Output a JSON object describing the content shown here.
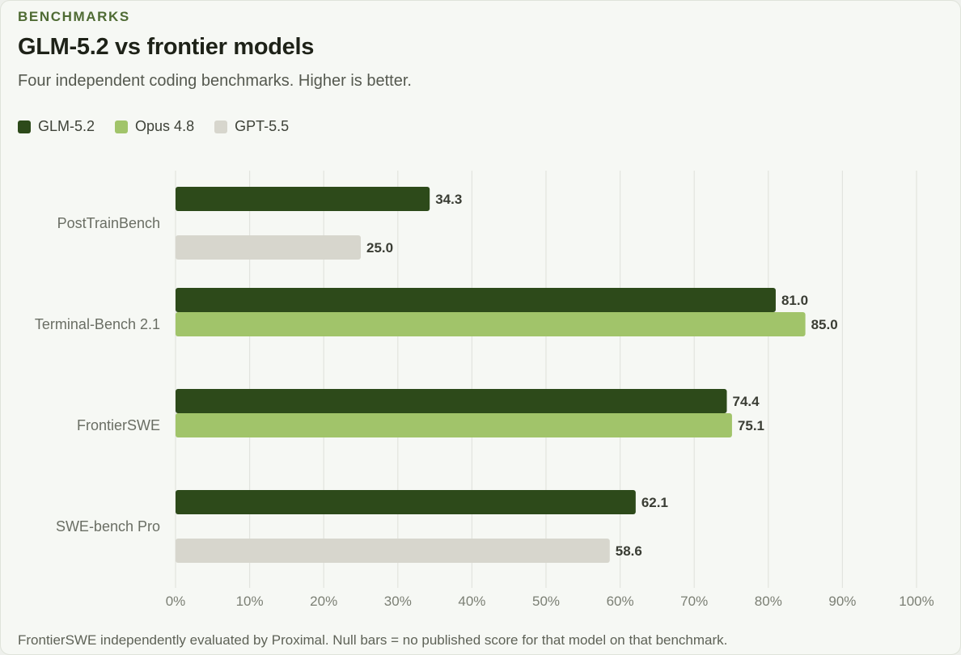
{
  "header": {
    "eyebrow": "BENCHMARKS",
    "title": "GLM-5.2 vs frontier models",
    "subtitle": "Four independent coding benchmarks. Higher is better."
  },
  "footnote": "FrontierSWE independently evaluated by Proximal. Null bars = no published score for that model on that benchmark.",
  "chart_data": {
    "type": "bar",
    "orientation": "horizontal",
    "categories": [
      "PostTrainBench",
      "Terminal-Bench 2.1",
      "FrontierSWE",
      "SWE-bench Pro"
    ],
    "series": [
      {
        "name": "GLM-5.2",
        "color": "#2d4a1a",
        "values": [
          34.3,
          81.0,
          74.4,
          62.1
        ]
      },
      {
        "name": "Opus 4.8",
        "color": "#a1c46a",
        "values": [
          null,
          85.0,
          75.1,
          null
        ]
      },
      {
        "name": "GPT-5.5",
        "color": "#d7d6cd",
        "values": [
          25.0,
          null,
          null,
          58.6
        ]
      }
    ],
    "xlim": [
      0,
      100
    ],
    "xticks": [
      "0%",
      "10%",
      "20%",
      "30%",
      "40%",
      "50%",
      "60%",
      "70%",
      "80%",
      "90%",
      "100%"
    ],
    "xtick_values": [
      0,
      10,
      20,
      30,
      40,
      50,
      60,
      70,
      80,
      90,
      100
    ],
    "grid": true,
    "legend_position": "top-left"
  }
}
